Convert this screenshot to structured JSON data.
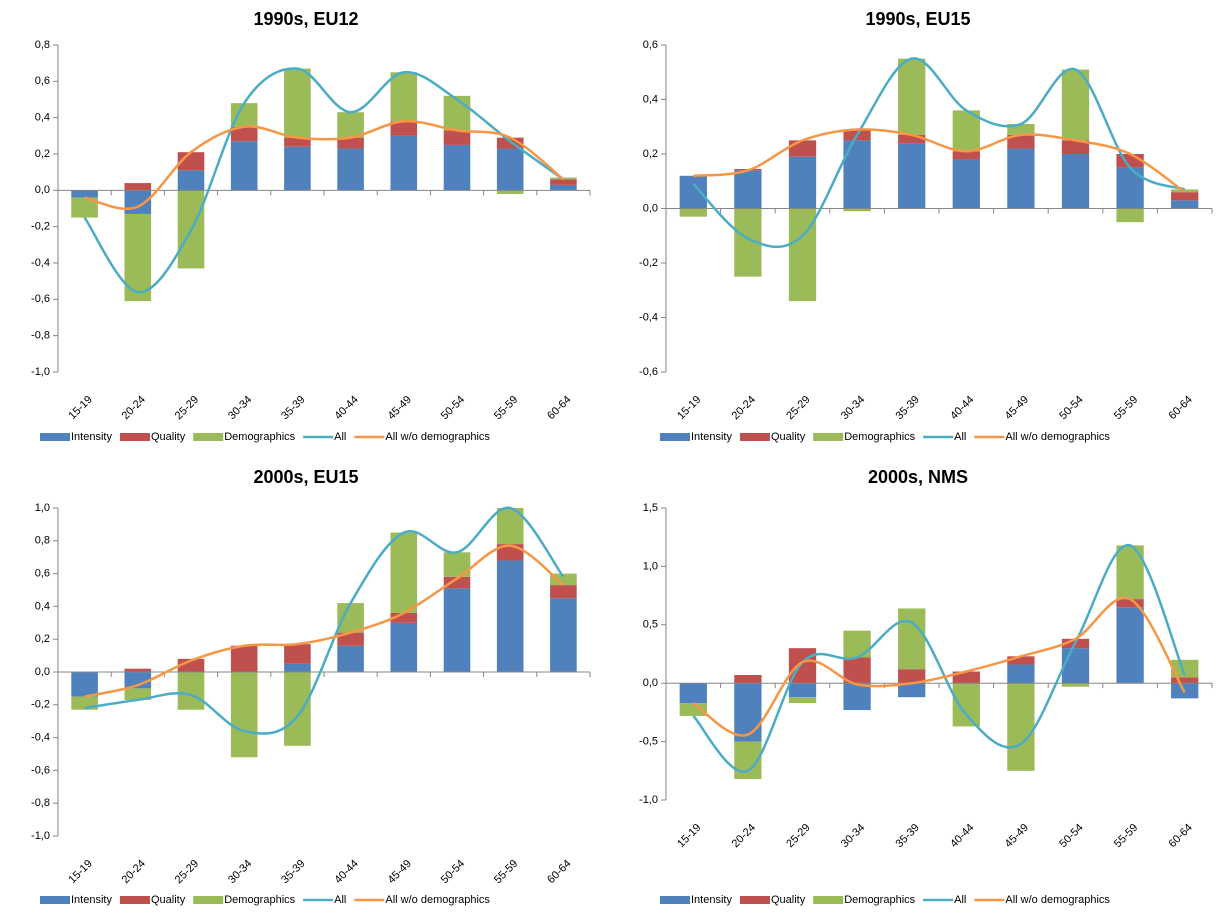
{
  "chart_data": [
    {
      "type": "bar",
      "title": "1990s, EU12",
      "categories": [
        "15-19",
        "20-24",
        "25-29",
        "30-34",
        "35-39",
        "40-44",
        "45-49",
        "50-54",
        "55-59",
        "60-64"
      ],
      "ylim": [
        -1.0,
        0.8
      ],
      "yticks": [
        {
          "value": -1.0,
          "label": "-1,0"
        },
        {
          "value": -0.8,
          "label": "-0,8"
        },
        {
          "value": -0.6,
          "label": "-0,6"
        },
        {
          "value": -0.4,
          "label": "-0,4"
        },
        {
          "value": -0.2,
          "label": "-0,2"
        },
        {
          "value": 0.0,
          "label": "0,0"
        },
        {
          "value": 0.2,
          "label": "0,2"
        },
        {
          "value": 0.4,
          "label": "0,4"
        },
        {
          "value": 0.6,
          "label": "0,6"
        },
        {
          "value": 0.8,
          "label": "0,8"
        }
      ],
      "series": [
        {
          "name": "Intensity",
          "type": "bar",
          "color": "#4f81bd",
          "values": [
            -0.04,
            -0.13,
            0.11,
            0.27,
            0.24,
            0.23,
            0.3,
            0.25,
            0.23,
            0.03
          ]
        },
        {
          "name": "Quality",
          "type": "bar",
          "color": "#c0504d",
          "values": [
            0.0,
            0.04,
            0.1,
            0.08,
            0.05,
            0.06,
            0.08,
            0.08,
            0.06,
            0.03
          ]
        },
        {
          "name": "Demographics",
          "type": "bar",
          "color": "#9bbb59",
          "values": [
            -0.11,
            -0.48,
            -0.43,
            0.13,
            0.38,
            0.14,
            0.27,
            0.19,
            -0.02,
            0.01
          ]
        },
        {
          "name": "All",
          "type": "line",
          "color": "#4bacc6",
          "values": [
            -0.15,
            -0.56,
            -0.22,
            0.48,
            0.67,
            0.43,
            0.65,
            0.5,
            0.27,
            0.06
          ]
        },
        {
          "name": "All w/o demographics",
          "type": "line",
          "color": "#f79646",
          "values": [
            -0.04,
            -0.09,
            0.21,
            0.35,
            0.29,
            0.29,
            0.38,
            0.33,
            0.29,
            0.06
          ]
        }
      ]
    },
    {
      "type": "bar",
      "title": "1990s, EU15",
      "categories": [
        "15-19",
        "20-24",
        "25-29",
        "30-34",
        "35-39",
        "40-44",
        "45-49",
        "50-54",
        "55-59",
        "60-64"
      ],
      "ylim": [
        -0.6,
        0.6
      ],
      "yticks": [
        {
          "value": -0.6,
          "label": "-0,6"
        },
        {
          "value": -0.4,
          "label": "-0,4"
        },
        {
          "value": -0.2,
          "label": "-0,2"
        },
        {
          "value": 0.0,
          "label": "0,0"
        },
        {
          "value": 0.2,
          "label": "0,2"
        },
        {
          "value": 0.4,
          "label": "0,4"
        },
        {
          "value": 0.6,
          "label": "0,6"
        }
      ],
      "series": [
        {
          "name": "Intensity",
          "type": "bar",
          "color": "#4f81bd",
          "values": [
            0.12,
            0.14,
            0.19,
            0.25,
            0.24,
            0.18,
            0.22,
            0.2,
            0.15,
            0.03
          ]
        },
        {
          "name": "Quality",
          "type": "bar",
          "color": "#c0504d",
          "values": [
            0.0,
            0.005,
            0.06,
            0.04,
            0.03,
            0.03,
            0.05,
            0.05,
            0.05,
            0.03
          ]
        },
        {
          "name": "Demographics",
          "type": "bar",
          "color": "#9bbb59",
          "values": [
            -0.03,
            -0.25,
            -0.34,
            -0.01,
            0.28,
            0.15,
            0.04,
            0.26,
            -0.05,
            0.01
          ]
        },
        {
          "name": "All",
          "type": "line",
          "color": "#4bacc6",
          "values": [
            0.09,
            -0.11,
            -0.1,
            0.27,
            0.55,
            0.36,
            0.31,
            0.51,
            0.15,
            0.07
          ]
        },
        {
          "name": "All w/o demographics",
          "type": "line",
          "color": "#f79646",
          "values": [
            0.12,
            0.14,
            0.25,
            0.29,
            0.27,
            0.21,
            0.27,
            0.25,
            0.2,
            0.06
          ]
        }
      ]
    },
    {
      "type": "bar",
      "title": "2000s, EU15",
      "categories": [
        "15-19",
        "20-24",
        "25-29",
        "30-34",
        "35-39",
        "40-44",
        "45-49",
        "50-54",
        "55-59",
        "60-64"
      ],
      "ylim": [
        -1.0,
        1.0
      ],
      "yticks": [
        {
          "value": -1.0,
          "label": "-1,0"
        },
        {
          "value": -0.8,
          "label": "-0,8"
        },
        {
          "value": -0.6,
          "label": "-0,6"
        },
        {
          "value": -0.4,
          "label": "-0,4"
        },
        {
          "value": -0.2,
          "label": "-0,2"
        },
        {
          "value": 0.0,
          "label": "0,0"
        },
        {
          "value": 0.2,
          "label": "0,2"
        },
        {
          "value": 0.4,
          "label": "0,4"
        },
        {
          "value": 0.6,
          "label": "0,6"
        },
        {
          "value": 0.8,
          "label": "0,8"
        },
        {
          "value": 1.0,
          "label": "1,0"
        }
      ],
      "series": [
        {
          "name": "Intensity",
          "type": "bar",
          "color": "#4f81bd",
          "values": [
            -0.15,
            -0.1,
            0.0,
            0.0,
            0.05,
            0.16,
            0.3,
            0.51,
            0.68,
            0.45
          ]
        },
        {
          "name": "Quality",
          "type": "bar",
          "color": "#c0504d",
          "values": [
            0.0,
            0.02,
            0.08,
            0.16,
            0.12,
            0.08,
            0.06,
            0.07,
            0.1,
            0.08
          ]
        },
        {
          "name": "Demographics",
          "type": "bar",
          "color": "#9bbb59",
          "values": [
            -0.08,
            -0.07,
            -0.23,
            -0.52,
            -0.45,
            0.18,
            0.49,
            0.15,
            0.22,
            0.07
          ]
        },
        {
          "name": "All",
          "type": "line",
          "color": "#4bacc6",
          "values": [
            -0.22,
            -0.17,
            -0.14,
            -0.36,
            -0.27,
            0.42,
            0.85,
            0.73,
            1.0,
            0.58
          ]
        },
        {
          "name": "All w/o demographics",
          "type": "line",
          "color": "#f79646",
          "values": [
            -0.15,
            -0.08,
            0.07,
            0.16,
            0.17,
            0.24,
            0.36,
            0.57,
            0.77,
            0.53
          ]
        }
      ]
    },
    {
      "type": "bar",
      "title": "2000s, NMS",
      "categories": [
        "15-19",
        "20-24",
        "25-29",
        "30-34",
        "35-39",
        "40-44",
        "45-49",
        "50-54",
        "55-59",
        "60-64"
      ],
      "ylim": [
        -1.0,
        1.5
      ],
      "yticks": [
        {
          "value": -1.0,
          "label": "-1,0"
        },
        {
          "value": -0.5,
          "label": "-0,5"
        },
        {
          "value": 0.0,
          "label": "0,0"
        },
        {
          "value": 0.5,
          "label": "0,5"
        },
        {
          "value": 1.0,
          "label": "1,0"
        },
        {
          "value": 1.5,
          "label": "1,5"
        }
      ],
      "series": [
        {
          "name": "Intensity",
          "type": "bar",
          "color": "#4f81bd",
          "values": [
            -0.17,
            -0.5,
            -0.12,
            -0.23,
            -0.12,
            0.0,
            0.16,
            0.3,
            0.65,
            -0.13
          ]
        },
        {
          "name": "Quality",
          "type": "bar",
          "color": "#c0504d",
          "values": [
            0.0,
            0.07,
            0.3,
            0.22,
            0.12,
            0.1,
            0.07,
            0.08,
            0.07,
            0.05
          ]
        },
        {
          "name": "Demographics",
          "type": "bar",
          "color": "#9bbb59",
          "values": [
            -0.11,
            -0.32,
            -0.05,
            0.23,
            0.52,
            -0.37,
            -0.75,
            -0.03,
            0.46,
            0.15
          ]
        },
        {
          "name": "All",
          "type": "line",
          "color": "#4bacc6",
          "values": [
            -0.28,
            -0.75,
            0.18,
            0.22,
            0.52,
            -0.27,
            -0.52,
            0.35,
            1.18,
            0.07
          ]
        },
        {
          "name": "All w/o demographics",
          "type": "line",
          "color": "#f79646",
          "values": [
            -0.17,
            -0.44,
            0.18,
            -0.01,
            0.0,
            0.1,
            0.23,
            0.38,
            0.72,
            -0.08
          ]
        }
      ]
    }
  ]
}
